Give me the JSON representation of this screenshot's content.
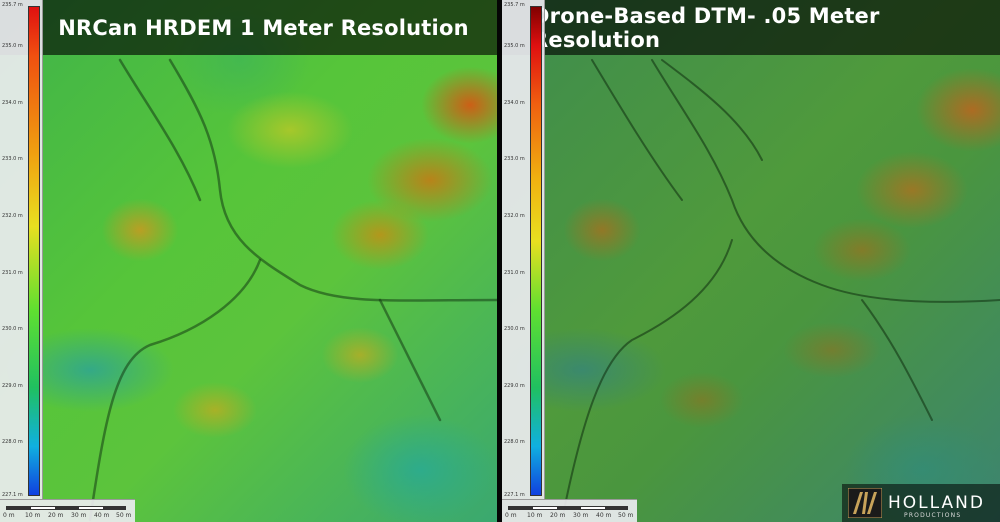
{
  "left_panel": {
    "title": "NRCan HRDEM 1 Meter Resolution",
    "legend_ticks": [
      "235.7 m",
      "235.0 m",
      "234.0 m",
      "233.0 m",
      "232.0 m",
      "231.0 m",
      "230.0 m",
      "229.0 m",
      "228.0 m",
      "227.1 m"
    ],
    "scale_labels": [
      "0 m",
      "10 m",
      "20 m",
      "30 m",
      "40 m",
      "50 m"
    ]
  },
  "right_panel": {
    "title": "Drone-Based DTM- .05 Meter Resolution",
    "legend_ticks": [
      "235.7 m",
      "235.0 m",
      "234.0 m",
      "233.0 m",
      "232.0 m",
      "231.0 m",
      "230.0 m",
      "229.0 m",
      "228.0 m",
      "227.1 m"
    ],
    "scale_labels": [
      "0 m",
      "10 m",
      "20 m",
      "30 m",
      "40 m",
      "50 m"
    ]
  },
  "logo": {
    "name": "HOLLAND",
    "sub": "PRODUCTIONS",
    "mark_color": "#c8a35a"
  },
  "colors": {
    "title_bar": "#000000",
    "legend_bg": "#ebebf0"
  }
}
